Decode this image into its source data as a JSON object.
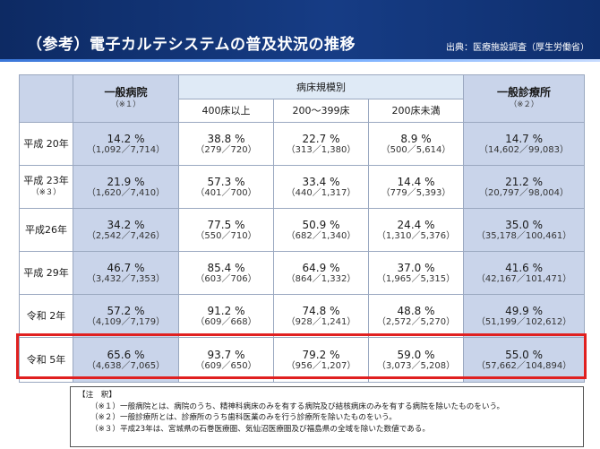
{
  "header": {
    "title": "（参考）電子カルテシステムの普及状況の推移",
    "source": "出典：医療施設調査（厚生労働省）"
  },
  "table": {
    "col_hospital": "一般病院",
    "col_hospital_note": "（※１）",
    "col_bed_scale": "病床規模別",
    "col_400": "400床以上",
    "col_200_399": "200～399床",
    "col_under200": "200床未満",
    "col_clinic": "一般診療所",
    "col_clinic_note": "（※２）",
    "rows": [
      {
        "label": "平成 20年",
        "label_note": "",
        "hospital": {
          "pct": "14.2 %",
          "cnt": "（1,092／7,714）"
        },
        "b400": {
          "pct": "38.8 %",
          "cnt": "（279／720）"
        },
        "b200": {
          "pct": "22.7 %",
          "cnt": "（313／1,380）"
        },
        "bu200": {
          "pct": "8.9 %",
          "cnt": "（500／5,614）"
        },
        "clinic": {
          "pct": "14.7 %",
          "cnt": "（14,602／99,083）"
        }
      },
      {
        "label": "平成 23年",
        "label_note": "（※３）",
        "hospital": {
          "pct": "21.9 %",
          "cnt": "（1,620／7,410）"
        },
        "b400": {
          "pct": "57.3 %",
          "cnt": "（401／700）"
        },
        "b200": {
          "pct": "33.4 %",
          "cnt": "（440／1,317）"
        },
        "bu200": {
          "pct": "14.4 %",
          "cnt": "（779／5,393）"
        },
        "clinic": {
          "pct": "21.2 %",
          "cnt": "（20,797／98,004）"
        }
      },
      {
        "label": "平成26年",
        "label_note": "",
        "hospital": {
          "pct": "34.2 %",
          "cnt": "（2,542／7,426）"
        },
        "b400": {
          "pct": "77.5 %",
          "cnt": "（550／710）"
        },
        "b200": {
          "pct": "50.9 %",
          "cnt": "（682／1,340）"
        },
        "bu200": {
          "pct": "24.4 %",
          "cnt": "（1,310／5,376）"
        },
        "clinic": {
          "pct": "35.0 %",
          "cnt": "（35,178／100,461）"
        }
      },
      {
        "label": "平成 29年",
        "label_note": "",
        "hospital": {
          "pct": "46.7 %",
          "cnt": "（3,432／7,353）"
        },
        "b400": {
          "pct": "85.4 %",
          "cnt": "（603／706）"
        },
        "b200": {
          "pct": "64.9 %",
          "cnt": "（864／1,332）"
        },
        "bu200": {
          "pct": "37.0 %",
          "cnt": "（1,965／5,315）"
        },
        "clinic": {
          "pct": "41.6 %",
          "cnt": "（42,167／101,471）"
        }
      },
      {
        "label": "令和 2年",
        "label_note": "",
        "hospital": {
          "pct": "57.2 %",
          "cnt": "（4,109／7,179）"
        },
        "b400": {
          "pct": "91.2 %",
          "cnt": "（609／668）"
        },
        "b200": {
          "pct": "74.8 %",
          "cnt": "（928／1,241）"
        },
        "bu200": {
          "pct": "48.8 %",
          "cnt": "（2,572／5,270）"
        },
        "clinic": {
          "pct": "49.9 %",
          "cnt": "（51,199／102,612）"
        }
      },
      {
        "label": "令和 5年",
        "label_note": "",
        "hospital": {
          "pct": "65.6 %",
          "cnt": "（4,638／7,065）"
        },
        "b400": {
          "pct": "93.7 %",
          "cnt": "（609／650）"
        },
        "b200": {
          "pct": "79.2 %",
          "cnt": "（956／1,207）"
        },
        "bu200": {
          "pct": "59.0 %",
          "cnt": "（3,073／5,208）"
        },
        "clinic": {
          "pct": "55.0 %",
          "cnt": "（57,662／104,894）"
        }
      }
    ]
  },
  "notes": {
    "title": "【注　釈】",
    "items": [
      "（※１）一般病院とは、病院のうち、精神科病床のみを有する病院及び結核病床のみを有する病院を除いたものをいう。",
      "（※２）一般診療所とは、診療所のうち歯科医業のみを行う診療所を除いたものをいう。",
      "（※３）平成23年は、宮城県の石巻医療圏、気仙沼医療圏及び福島県の全域を除いた数値である。"
    ]
  },
  "colors": {
    "header_bg": "#163c85",
    "highlight_border": "#e02020",
    "header_cell_bg": "#c9d4ea"
  }
}
